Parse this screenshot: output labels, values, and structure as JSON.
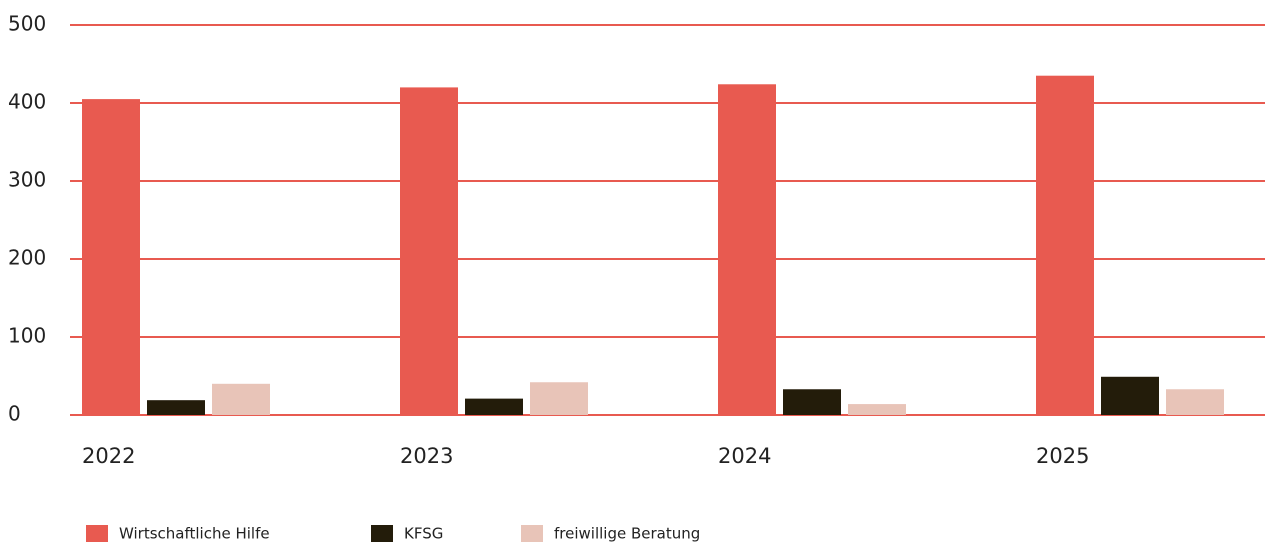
{
  "chart_data": {
    "type": "bar",
    "categories": [
      "2022",
      "2023",
      "2024",
      "2025"
    ],
    "series": [
      {
        "name": "Wirtschaftliche Hilfe",
        "color": "#e85a50",
        "values": [
          405,
          420,
          424,
          435
        ]
      },
      {
        "name": "KFSG",
        "color": "#231c0a",
        "values": [
          19,
          21,
          33,
          49
        ]
      },
      {
        "name": "freiwillige Beratung",
        "color": "#e8c4b8",
        "values": [
          40,
          42,
          14,
          33
        ]
      }
    ],
    "ylim": [
      0,
      500
    ],
    "yticks": [
      0,
      100,
      200,
      300,
      400,
      500
    ],
    "grid": true,
    "grid_color": "#e85a50",
    "legend": "bottom-left"
  }
}
